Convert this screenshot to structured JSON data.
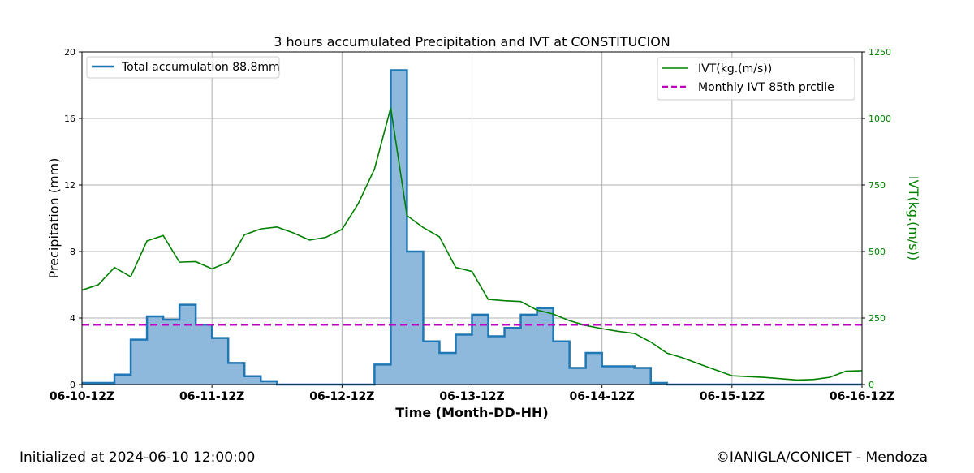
{
  "footer": {
    "initialized": "Initialized at 2024-06-10 12:00:00",
    "credit": "©IANIGLA/CONICET - Mendoza"
  },
  "chart_data": {
    "type": "area",
    "title": "3 hours accumulated Precipitation and IVT at CONSTITUCION",
    "xlabel": "Time (Month-DD-HH)",
    "ylabel": "Precipitation (mm)",
    "y2label": "IVT(kg.(m/s))",
    "x_ticks": [
      "06-10-12Z",
      "06-11-12Z",
      "06-12-12Z",
      "06-13-12Z",
      "06-14-12Z",
      "06-15-12Z",
      "06-16-12Z"
    ],
    "ylim": [
      0,
      20
    ],
    "y_ticks": [
      0,
      4,
      8,
      12,
      16,
      20
    ],
    "y2lim": [
      0,
      1250
    ],
    "y2_ticks": [
      0,
      250,
      500,
      750,
      1000,
      1250
    ],
    "grid": true,
    "legend_left": {
      "placement": "upper-left",
      "entries": [
        "Total accumulation 88.8mm"
      ]
    },
    "legend_right": {
      "placement": "upper-right",
      "entries": [
        "IVT(kg.(m/s))",
        "Monthly IVT 85th prctile"
      ]
    },
    "colors": {
      "precip_line": "#1f77b4",
      "precip_fill": "#8fb9dc",
      "ivt": "#008000",
      "threshold": "#c000c0"
    },
    "series": [
      {
        "name": "Total accumulation 88.8mm",
        "kind": "step-area",
        "axis": "left",
        "values": [
          0.1,
          0.1,
          0.6,
          2.7,
          4.1,
          3.9,
          4.8,
          3.6,
          2.8,
          1.3,
          0.5,
          0.2,
          0,
          0,
          0,
          0,
          0,
          0,
          1.2,
          18.9,
          8.0,
          2.6,
          1.9,
          3.0,
          4.2,
          2.9,
          3.4,
          4.2,
          4.6,
          2.6,
          1.0,
          1.9,
          1.1,
          1.1,
          1.0,
          0.1,
          0,
          0,
          0,
          0,
          0,
          0,
          0,
          0,
          0,
          0,
          0,
          0
        ]
      },
      {
        "name": "IVT(kg.(m/s))",
        "kind": "line",
        "axis": "right",
        "values": [
          355,
          375,
          440,
          405,
          540,
          560,
          460,
          462,
          435,
          460,
          563,
          585,
          592,
          570,
          543,
          553,
          583,
          680,
          810,
          1040,
          635,
          590,
          555,
          440,
          425,
          320,
          315,
          312,
          280,
          265,
          240,
          222,
          210,
          200,
          192,
          160,
          118,
          100,
          77,
          55,
          33,
          30,
          27,
          22,
          17,
          19,
          27,
          50,
          52
        ]
      },
      {
        "name": "Monthly IVT 85th prctile",
        "kind": "hline",
        "axis": "right",
        "value": 225
      }
    ]
  }
}
